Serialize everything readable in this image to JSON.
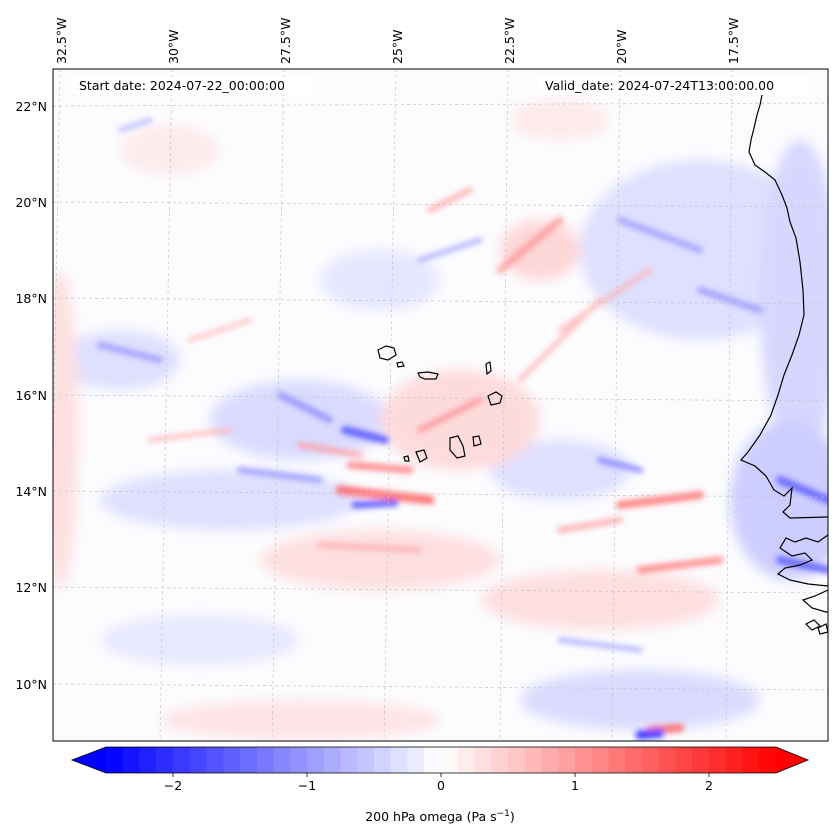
{
  "map": {
    "start_label": "Start date: 2024-07-22_00:00:00",
    "valid_label": "Valid_date: 2024-07-24T13:00:00.00",
    "field": "200 hPa omega",
    "units": "Pa s^-1",
    "colormap": "bwr",
    "colors": {
      "negative": "#0000ff",
      "zero": "#ffffff",
      "positive": "#ff0000",
      "coast": "#000000",
      "grid": "#b4b4b4"
    },
    "lon_labels": [
      "32.5°W",
      "30°W",
      "27.5°W",
      "25°W",
      "22.5°W",
      "20°W",
      "17.5°W"
    ],
    "lat_labels": [
      "22°N",
      "20°N",
      "18°N",
      "16°N",
      "14°N",
      "12°N",
      "10°N"
    ]
  },
  "colorbar": {
    "label_main": "200 hPa omega (Pa s",
    "label_sup": "−1",
    "label_end": ")",
    "range": [
      -2.5,
      2.5
    ],
    "extend": "both",
    "ticks": [
      {
        "value": -2,
        "label": "−2"
      },
      {
        "value": -1,
        "label": "−1"
      },
      {
        "value": 0,
        "label": "0"
      },
      {
        "value": 1,
        "label": "1"
      },
      {
        "value": 2,
        "label": "2"
      }
    ]
  }
}
